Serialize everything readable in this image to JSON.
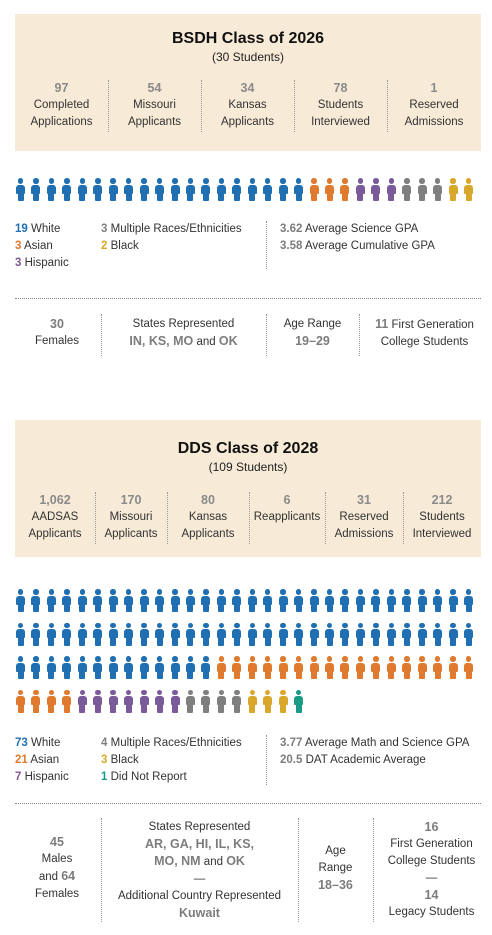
{
  "colors": {
    "panel_bg": "#f7ead7",
    "white": "#1f6fb2",
    "asian": "#e07a2e",
    "hispanic": "#7a5a99",
    "multiple": "#7f7f7f",
    "black": "#d9a82a",
    "did_not_report": "#1a9b86",
    "number_gray": "#8a8a8a"
  },
  "bsdh": {
    "title": "BSDH Class of 2026",
    "subtitle": "(30 Students)",
    "stats": [
      {
        "num": "97",
        "l1": "Completed",
        "l2": "Applications"
      },
      {
        "num": "54",
        "l1": "Missouri",
        "l2": "Applicants"
      },
      {
        "num": "34",
        "l1": "Kansas",
        "l2": "Applicants"
      },
      {
        "num": "78",
        "l1": "Students",
        "l2": "Interviewed"
      },
      {
        "num": "1",
        "l1": "Reserved",
        "l2": "Admissions"
      }
    ],
    "composition": [
      {
        "key": "white",
        "count": 19
      },
      {
        "key": "asian",
        "count": 3
      },
      {
        "key": "hispanic",
        "count": 3
      },
      {
        "key": "multiple",
        "count": 3
      },
      {
        "key": "black",
        "count": 2
      }
    ],
    "legend": {
      "white_n": "19",
      "white_l": "White",
      "asian_n": "3",
      "asian_l": "Asian",
      "hispanic_n": "3",
      "hispanic_l": "Hispanic",
      "multiple_n": "3",
      "multiple_l": "Multiple Races/Ethnicities",
      "black_n": "2",
      "black_l": "Black"
    },
    "gpa": {
      "science_n": "3.62",
      "science_l": "Average Science GPA",
      "cum_n": "3.58",
      "cum_l": "Average Cumulative GPA"
    },
    "info": {
      "females_n": "30",
      "females_l": "Females",
      "states_l": "States Represented",
      "states_v": "IN, KS, MO",
      "states_and": "and",
      "states_last": "OK",
      "age_l": "Age Range",
      "age_v": "19–29",
      "firstgen_n": "11",
      "firstgen_l1": "First Generation",
      "firstgen_l2": "College Students"
    }
  },
  "dds": {
    "title": "DDS Class of 2028",
    "subtitle": "(109 Students)",
    "stats": [
      {
        "num": "1,062",
        "l1": "AADSAS",
        "l2": "Applicants"
      },
      {
        "num": "170",
        "l1": "Missouri",
        "l2": "Applicants"
      },
      {
        "num": "80",
        "l1": "Kansas",
        "l2": "Applicants"
      },
      {
        "num": "6",
        "l1": "Reapplicants",
        "l2": ""
      },
      {
        "num": "31",
        "l1": "Reserved",
        "l2": "Admissions"
      },
      {
        "num": "212",
        "l1": "Students",
        "l2": "Interviewed"
      }
    ],
    "composition": [
      {
        "key": "white",
        "count": 73
      },
      {
        "key": "asian",
        "count": 21
      },
      {
        "key": "hispanic",
        "count": 7
      },
      {
        "key": "multiple",
        "count": 4
      },
      {
        "key": "black",
        "count": 3
      },
      {
        "key": "did_not_report",
        "count": 1
      }
    ],
    "legend": {
      "white_n": "73",
      "white_l": "White",
      "asian_n": "21",
      "asian_l": "Asian",
      "hispanic_n": "7",
      "hispanic_l": "Hispanic",
      "multiple_n": "4",
      "multiple_l": "Multiple Races/Ethnicities",
      "black_n": "3",
      "black_l": "Black",
      "dnr_n": "1",
      "dnr_l": "Did Not Report"
    },
    "gpa": {
      "mathsci_n": "3.77",
      "mathsci_l": "Average Math and Science GPA",
      "dat_n": "20.5",
      "dat_l": "DAT Academic Average"
    },
    "info": {
      "males_n": "45",
      "males_l": "Males",
      "and_l": "and",
      "females_n": "64",
      "females_l": "Females",
      "states_l": "States Represented",
      "states_v1": "AR, GA, HI, IL, KS,",
      "states_v2": "MO, NM",
      "states_and": "and",
      "states_last": "OK",
      "dash": "—",
      "country_l": "Additional Country Represented",
      "country_v": "Kuwait",
      "age_l1": "Age",
      "age_l2": "Range",
      "age_v": "18–36",
      "firstgen_n": "16",
      "firstgen_l1": "First Generation",
      "firstgen_l2": "College Students",
      "dash2": "—",
      "legacy_n": "14",
      "legacy_l": "Legacy Students"
    }
  }
}
